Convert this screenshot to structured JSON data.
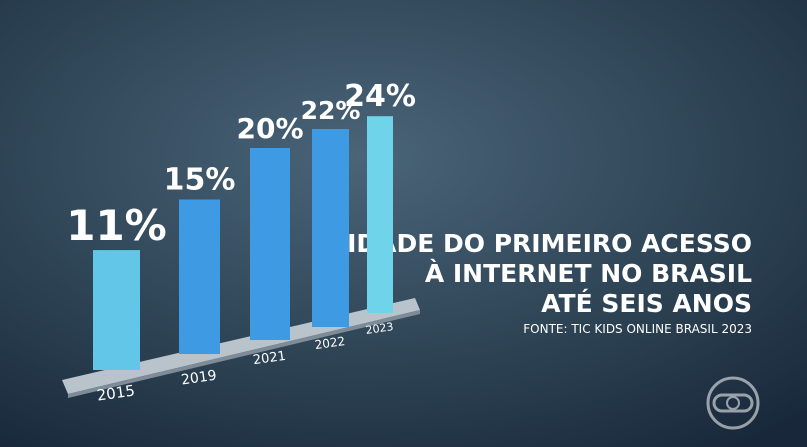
{
  "chart_data": {
    "type": "bar",
    "title": [
      "IDADE DO PRIMEIRO ACESSO",
      "À INTERNET NO BRASIL",
      "ATÉ SEIS ANOS"
    ],
    "source": "FONTE: TIC KIDS ONLINE BRASIL 2023",
    "categories": [
      "2015",
      "2019",
      "2021",
      "2022",
      "2023"
    ],
    "values": [
      11,
      15,
      20,
      22,
      24
    ],
    "value_labels": [
      "11%",
      "15%",
      "20%",
      "22%",
      "24%"
    ],
    "colors": [
      "#62c6e8",
      "#3f9ae4",
      "#3f9ae4",
      "#3f9ae4",
      "#6fd3ea"
    ]
  }
}
